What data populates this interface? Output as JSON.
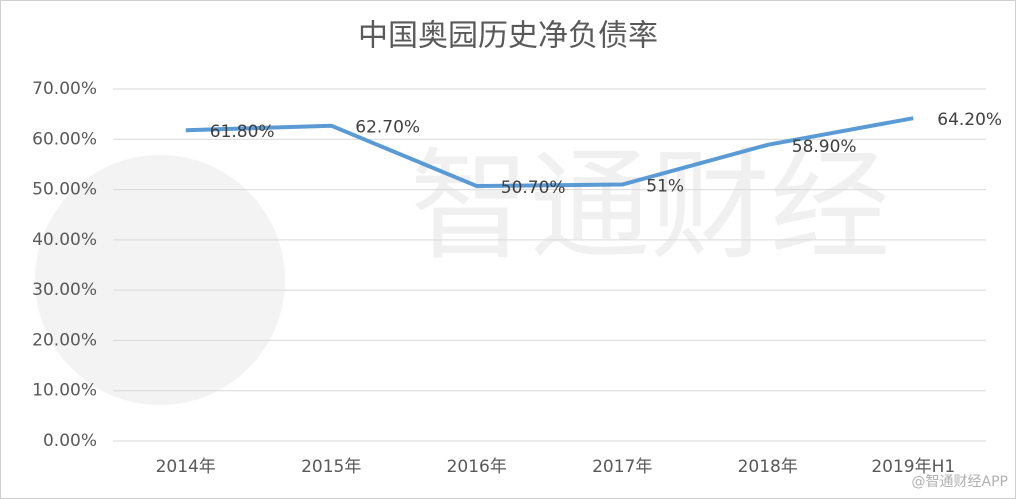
{
  "chart_data": {
    "type": "line",
    "title": "中国奥园历史净负债率",
    "categories": [
      "2014年",
      "2015年",
      "2016年",
      "2017年",
      "2018年",
      "2019年H1"
    ],
    "series": [
      {
        "name": "净负债率",
        "color": "#5b9bd5",
        "values": [
          61.8,
          62.7,
          50.7,
          51,
          58.9,
          64.2
        ],
        "value_labels": [
          "61.80%",
          "62.70%",
          "50.70%",
          "51%",
          "58.90%",
          "64.20%"
        ]
      }
    ],
    "ylim": [
      0,
      70
    ],
    "yticks": [
      {
        "value": 0,
        "label": "0.00%"
      },
      {
        "value": 10,
        "label": "10.00%"
      },
      {
        "value": 20,
        "label": "20.00%"
      },
      {
        "value": 30,
        "label": "30.00%"
      },
      {
        "value": 40,
        "label": "40.00%"
      },
      {
        "value": 50,
        "label": "50.00%"
      },
      {
        "value": 60,
        "label": "60.00%"
      },
      {
        "value": 70,
        "label": "70.00%"
      }
    ],
    "grid": true,
    "watermark": "智通财经",
    "credit": "@智通财经APP"
  }
}
